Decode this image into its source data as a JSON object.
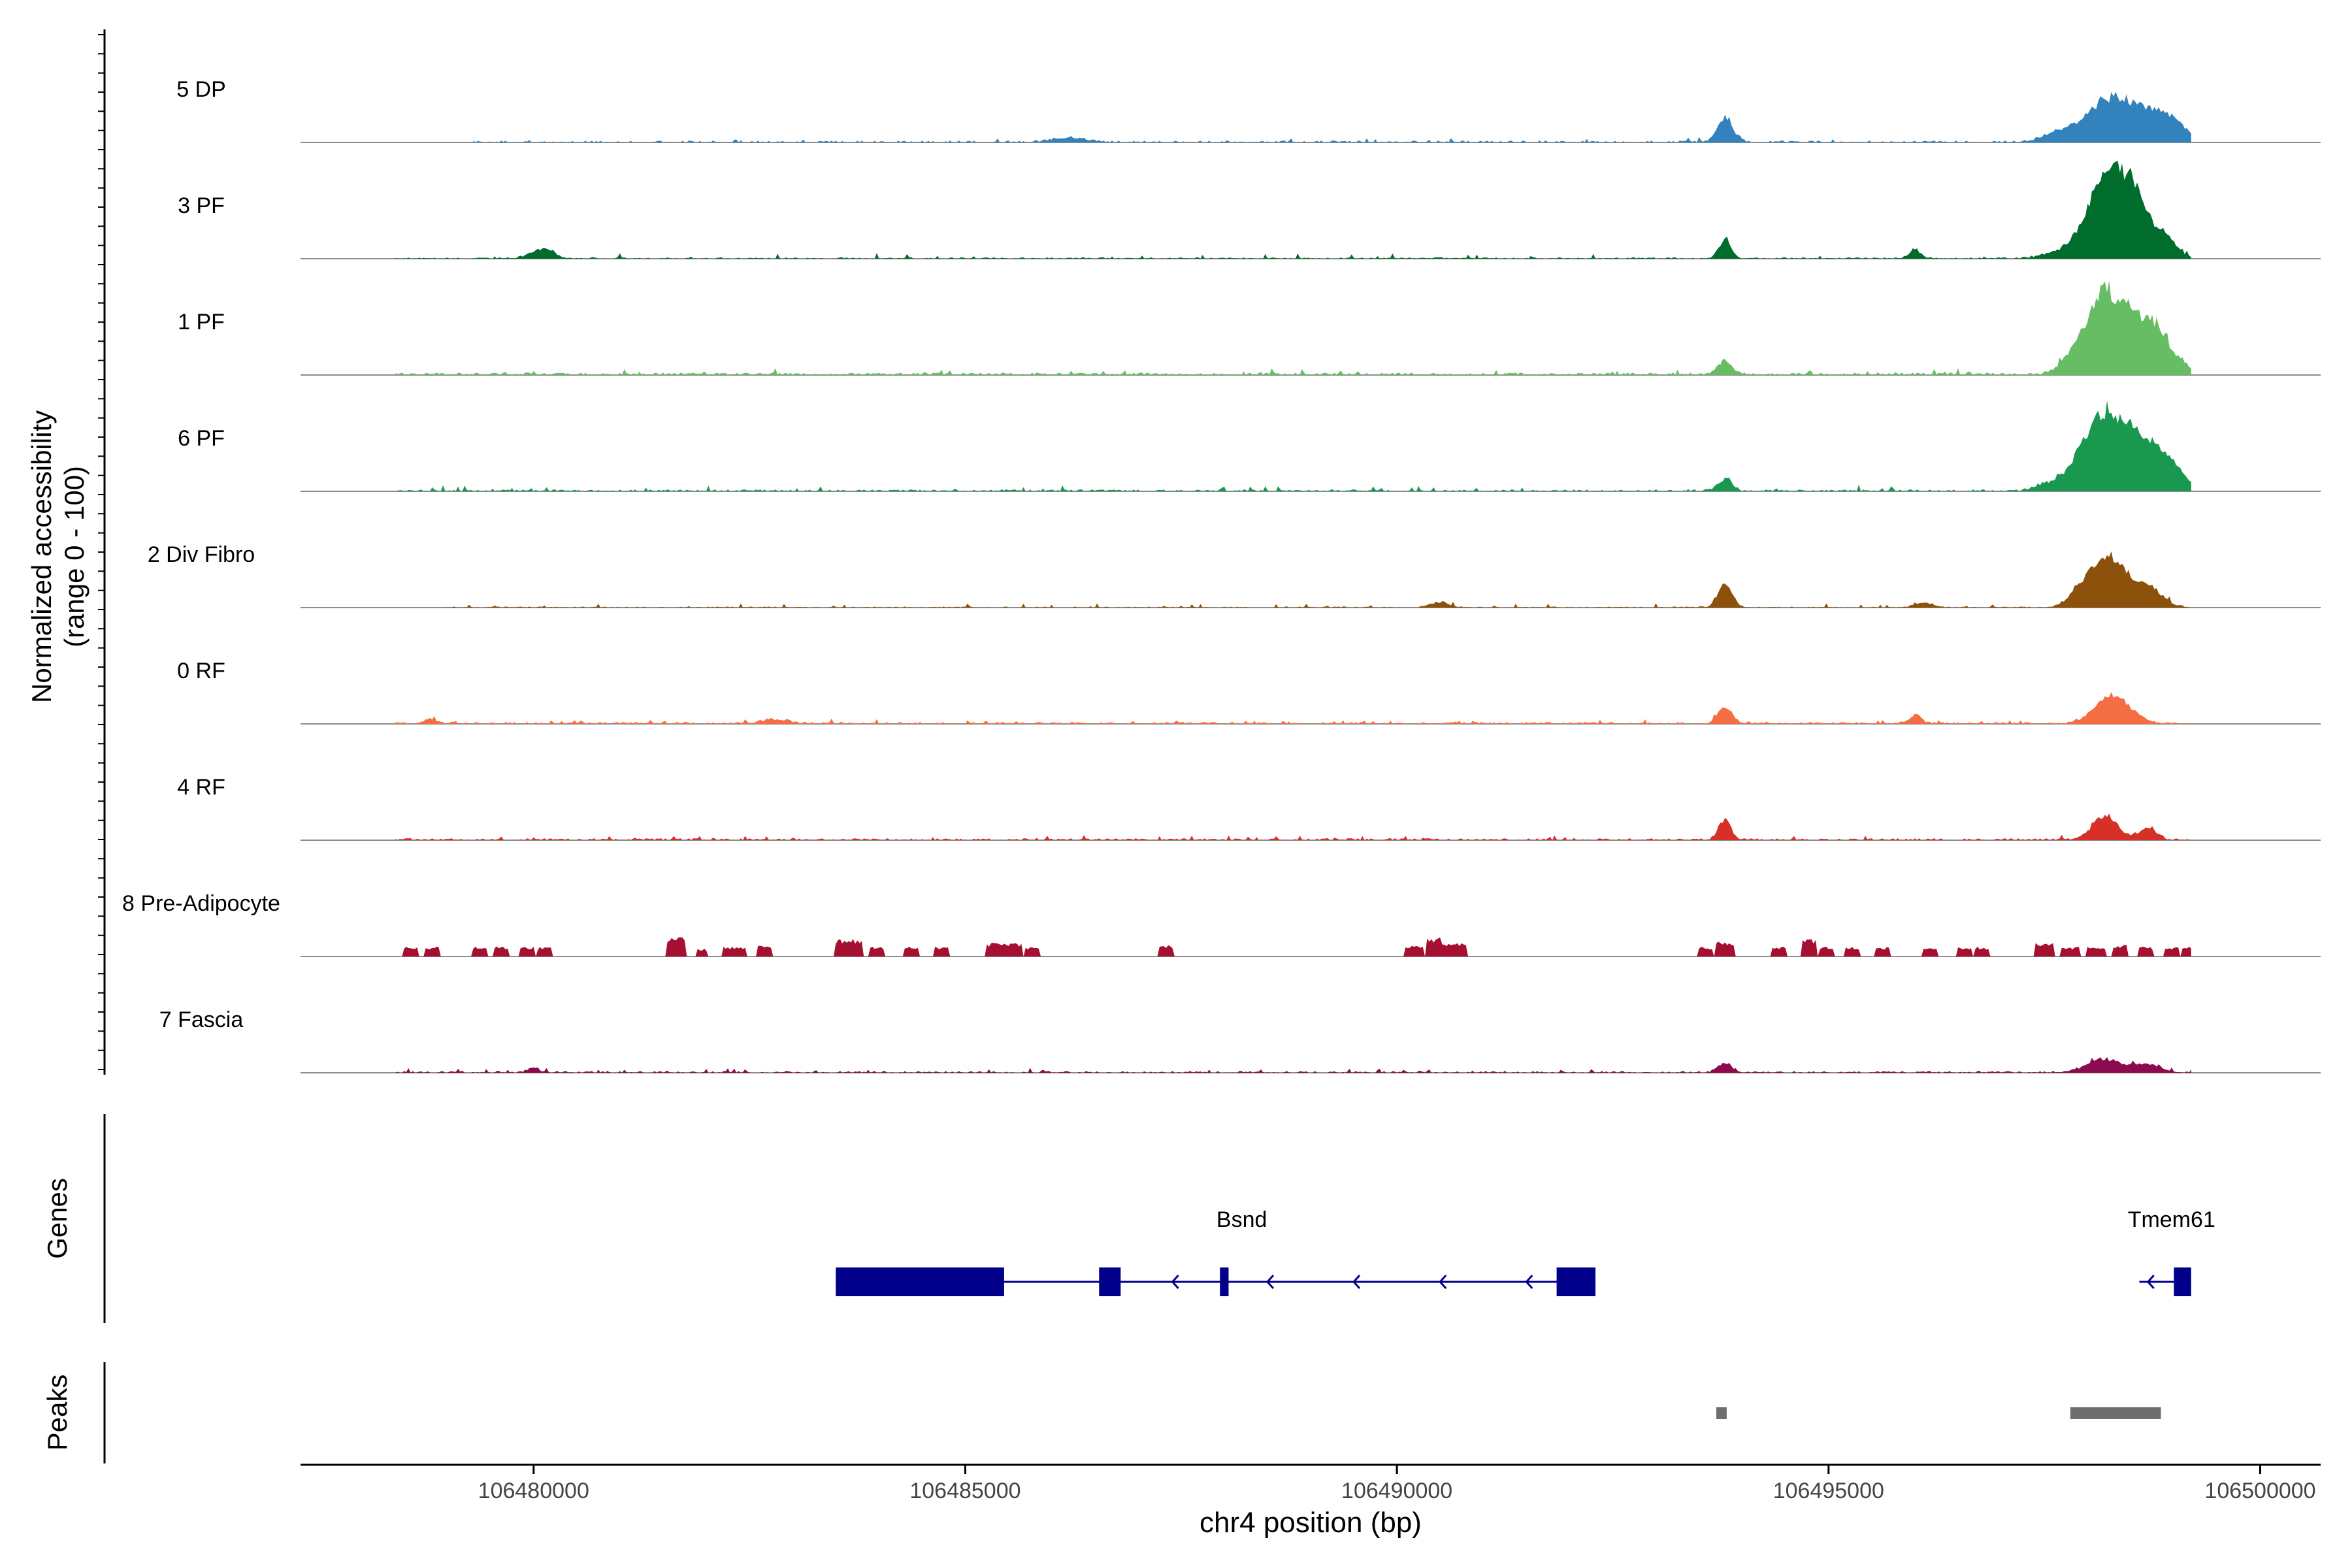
{
  "chart_data": {
    "type": "area",
    "title": "",
    "ylabel": "Normalized accessibility",
    "ylabel_range": "(range 0 - 100)",
    "xlabel": "chr4 position (bp)",
    "xlim": [
      106477300,
      106500700
    ],
    "x_ticks": [
      106480000,
      106485000,
      106490000,
      106495000,
      106500000
    ],
    "x_tick_labels": [
      "106480000",
      "106485000",
      "106490000",
      "106495000",
      "106500000"
    ],
    "ylim": [
      0,
      100
    ],
    "series": [
      {
        "name": "5 DP",
        "color": "#3182bd",
        "start": 106479300,
        "end": 106499200,
        "baseline": 2,
        "noise": 3.5,
        "density": 0.55,
        "peaks": [
          [
            106493800,
            28,
            90
          ],
          [
            106498300,
            52,
            320
          ],
          [
            106498900,
            26,
            220
          ],
          [
            106497600,
            7,
            150
          ],
          [
            106486200,
            5,
            200
          ]
        ]
      },
      {
        "name": "3 PF",
        "color": "#006d2c",
        "start": 106478400,
        "end": 106499200,
        "baseline": 1.5,
        "noise": 5,
        "density": 0.6,
        "peaks": [
          [
            106480100,
            11,
            130
          ],
          [
            106493800,
            22,
            70
          ],
          [
            106496000,
            10,
            70
          ],
          [
            106498300,
            85,
            150
          ],
          [
            106498550,
            62,
            130
          ],
          [
            106498050,
            48,
            160
          ],
          [
            106498850,
            30,
            150
          ],
          [
            106497700,
            8,
            200
          ]
        ]
      },
      {
        "name": "1 PF",
        "color": "#66bd63",
        "start": 106478400,
        "end": 106499200,
        "baseline": 2.5,
        "noise": 5,
        "density": 0.85,
        "peaks": [
          [
            106493800,
            15,
            80
          ],
          [
            106498200,
            88,
            150
          ],
          [
            106498500,
            62,
            130
          ],
          [
            106498800,
            55,
            140
          ],
          [
            106497900,
            32,
            160
          ],
          [
            106499100,
            10,
            100
          ]
        ]
      },
      {
        "name": "6 PF",
        "color": "#1a9850",
        "start": 106478400,
        "end": 106499200,
        "baseline": 2,
        "noise": 5,
        "density": 0.75,
        "peaks": [
          [
            106493800,
            14,
            80
          ],
          [
            106498200,
            85,
            150
          ],
          [
            106498500,
            62,
            130
          ],
          [
            106498800,
            50,
            140
          ],
          [
            106497900,
            38,
            160
          ],
          [
            106499050,
            18,
            120
          ],
          [
            106497500,
            8,
            120
          ]
        ]
      },
      {
        "name": "2 Div Fibro",
        "color": "#8c510a",
        "start": 106479000,
        "end": 106499200,
        "baseline": 1.2,
        "noise": 4,
        "density": 0.55,
        "peaks": [
          [
            106493800,
            28,
            80
          ],
          [
            106498300,
            55,
            160
          ],
          [
            106498000,
            30,
            160
          ],
          [
            106498700,
            25,
            160
          ],
          [
            106496100,
            6,
            100
          ],
          [
            106490500,
            6,
            100
          ]
        ]
      },
      {
        "name": "0 RF",
        "color": "#f46d43",
        "start": 106478400,
        "end": 106499200,
        "baseline": 2,
        "noise": 3.5,
        "density": 0.75,
        "peaks": [
          [
            106493800,
            20,
            80
          ],
          [
            106498300,
            32,
            200
          ],
          [
            106496000,
            10,
            70
          ],
          [
            106478800,
            6,
            60
          ],
          [
            106482800,
            5,
            150
          ]
        ]
      },
      {
        "name": "4 RF",
        "color": "#d73027",
        "start": 106478400,
        "end": 106499200,
        "baseline": 2,
        "noise": 4,
        "density": 0.8,
        "peaks": [
          [
            106493800,
            24,
            70
          ],
          [
            106498200,
            26,
            150
          ],
          [
            106498700,
            14,
            100
          ]
        ]
      },
      {
        "name": "8 Pre-Adipocyte",
        "color": "#a50f30",
        "start": 106478400,
        "end": 106499200,
        "baseline": 0,
        "noise": 0,
        "density": 0.0,
        "blocks": [
          [
            106478500,
            106478650,
            10
          ],
          [
            106478750,
            106478900,
            10
          ],
          [
            106479300,
            106479450,
            10
          ],
          [
            106479550,
            106479700,
            10
          ],
          [
            106479850,
            106480000,
            10
          ],
          [
            106480050,
            106480200,
            10
          ],
          [
            106481550,
            106481750,
            20
          ],
          [
            106481900,
            106482000,
            8
          ],
          [
            106482200,
            106482450,
            10
          ],
          [
            106482600,
            106482750,
            12
          ],
          [
            106483500,
            106483800,
            18
          ],
          [
            106483900,
            106484050,
            10
          ],
          [
            106484300,
            106484450,
            10
          ],
          [
            106484650,
            106484800,
            10
          ],
          [
            106485250,
            106485650,
            14
          ],
          [
            106485700,
            106485850,
            10
          ],
          [
            106487250,
            106487400,
            12
          ],
          [
            106490100,
            106490300,
            12
          ],
          [
            106490350,
            106490500,
            20
          ],
          [
            106490500,
            106490800,
            14
          ],
          [
            106493500,
            106493650,
            10
          ],
          [
            106493700,
            106493900,
            16
          ],
          [
            106494350,
            106494500,
            10
          ],
          [
            106494700,
            106494850,
            18
          ],
          [
            106494900,
            106495050,
            10
          ],
          [
            106495200,
            106495350,
            10
          ],
          [
            106495550,
            106495700,
            10
          ],
          [
            106496100,
            106496250,
            10
          ],
          [
            106496500,
            106496650,
            10
          ],
          [
            106496700,
            106496850,
            10
          ],
          [
            106497400,
            106497600,
            14
          ],
          [
            106497700,
            106497900,
            10
          ],
          [
            106498000,
            106498200,
            10
          ],
          [
            106498300,
            106498450,
            12
          ],
          [
            106498600,
            106498750,
            10
          ],
          [
            106498900,
            106499050,
            10
          ],
          [
            106499100,
            106499200,
            10
          ]
        ]
      },
      {
        "name": "7 Fascia",
        "color": "#8b0a50",
        "start": 106478400,
        "end": 106499200,
        "baseline": 2,
        "noise": 3.5,
        "density": 0.6,
        "peaks": [
          [
            106480000,
            7,
            60
          ],
          [
            106493800,
            10,
            80
          ],
          [
            106498200,
            16,
            200
          ],
          [
            106498700,
            10,
            150
          ]
        ]
      }
    ],
    "genes_panel_label": "Genes",
    "genes": [
      {
        "name": "Bsnd",
        "strand": "-",
        "start": 106483500,
        "end": 106492300,
        "exons": [
          [
            106483500,
            106485450
          ],
          [
            106486550,
            106486800
          ],
          [
            106487950,
            106488050
          ],
          [
            106491850,
            106492300
          ]
        ],
        "arrows": [
          106487400,
          106488500,
          106489500,
          106490500,
          106491500
        ]
      },
      {
        "name": "Tmem61",
        "strand": "-",
        "start": 106498600,
        "end": 106499200,
        "exons": [
          [
            106499000,
            106499200
          ]
        ],
        "arrows": [
          106498700
        ]
      }
    ],
    "peaks_panel_label": "Peaks",
    "peaks": [
      [
        106493700,
        106493820
      ],
      [
        106497800,
        106498850
      ]
    ],
    "peak_color": "#6e6e6e",
    "gene_color": "#00008b"
  }
}
